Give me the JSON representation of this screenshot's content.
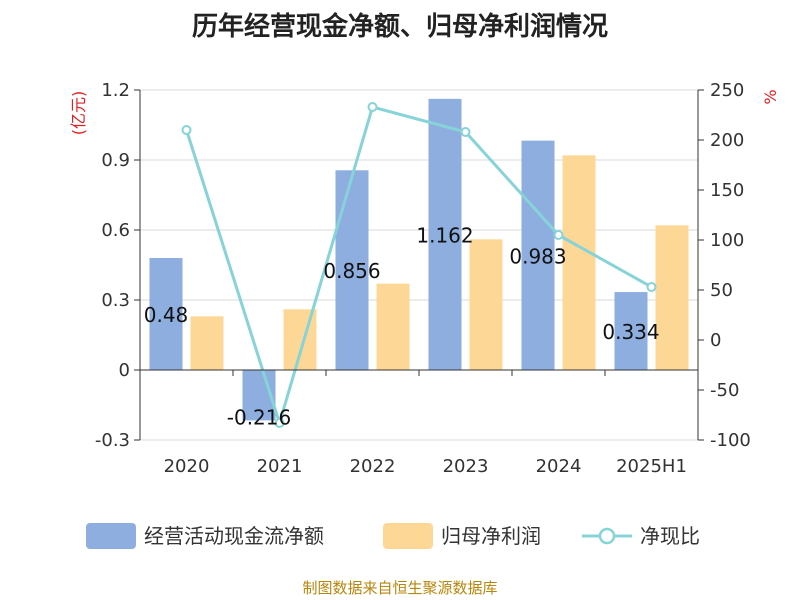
{
  "chart_data": {
    "type": "bar",
    "title": "历年经营现金净额、归母净利润情况",
    "categories": [
      "2020",
      "2021",
      "2022",
      "2023",
      "2024",
      "2025H1"
    ],
    "left_axis": {
      "unit": "(亿元)",
      "ylim": [
        -0.3,
        1.2
      ],
      "ticks": [
        "1.2",
        "0.9",
        "0.6",
        "0.3",
        "0",
        "-0.3"
      ]
    },
    "right_axis": {
      "unit": "%",
      "ylim": [
        -100,
        250
      ],
      "ticks": [
        "250",
        "200",
        "150",
        "100",
        "50",
        "0",
        "-50",
        "-100"
      ]
    },
    "series": [
      {
        "name": "经营活动现金流净额",
        "type": "bar",
        "axis": "left",
        "color": "#8eaee0",
        "values": [
          0.48,
          -0.216,
          0.856,
          1.162,
          0.983,
          0.334
        ],
        "labels": [
          "0.48",
          "-0.216",
          "0.856",
          "1.162",
          "0.983",
          "0.334"
        ]
      },
      {
        "name": "归母净利润",
        "type": "bar",
        "axis": "left",
        "color": "#fdd796",
        "values": [
          0.23,
          0.26,
          0.37,
          0.56,
          0.92,
          0.62
        ]
      },
      {
        "name": "净现比",
        "type": "line",
        "axis": "right",
        "color": "#86d3d8",
        "values": [
          210,
          -83,
          233,
          208,
          105,
          53
        ]
      }
    ],
    "legend_position": "bottom",
    "grid": true
  },
  "source_text": "制图数据来自恒生聚源数据库"
}
